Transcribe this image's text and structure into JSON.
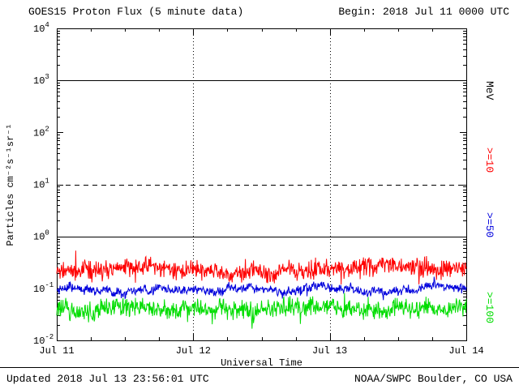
{
  "header": {
    "title": "GOES15 Proton Flux (5 minute data)",
    "begin_label": "Begin: 2018 Jul 11 0000 UTC"
  },
  "axes": {
    "ylabel": "Particles cm⁻²s⁻¹sr⁻¹",
    "xlabel": "Universal Time"
  },
  "legend": {
    "unit": "MeV",
    "items": [
      {
        "label": ">=10",
        "color": "#ff0000"
      },
      {
        "label": ">=50",
        "color": "#0000dd"
      },
      {
        "label": ">=100",
        "color": "#00dd00"
      }
    ]
  },
  "footer": {
    "updated": "Updated 2018 Jul 13 23:56:01 UTC",
    "source": "NOAA/SWPC Boulder, CO USA"
  },
  "chart_data": {
    "type": "line",
    "title": "GOES15 Proton Flux (5 minute data)",
    "xlabel": "Universal Time",
    "ylabel": "Particles cm^-2 s^-1 sr^-1",
    "x_ticks": [
      "Jul 11",
      "Jul 12",
      "Jul 13",
      "Jul 14"
    ],
    "y_tick_exponents": [
      -2,
      -1,
      0,
      1,
      2,
      3,
      4
    ],
    "ylim_log10": [
      -2,
      4
    ],
    "x_range": {
      "start": "2018 Jul 11 0000 UTC",
      "days": 3,
      "cadence_minutes": 5
    },
    "gridlines": {
      "solid_log10": [
        0,
        3
      ],
      "dashed_log10": [
        1
      ],
      "vertical_dotted_days": [
        1,
        2
      ],
      "vertical_dotted_labels": [
        "Jul 12",
        "Jul 13"
      ]
    },
    "series": [
      {
        "name": ">=10",
        "unit": "MeV",
        "color": "#ff0000",
        "mean_log10_flux": -0.62,
        "sigma_log10": 0.11,
        "spike_prob": 0.02,
        "spike_mag_log10": 0.24,
        "seed": 11,
        "approx_flux_range": [
          0.1,
          0.5
        ]
      },
      {
        "name": ">=50",
        "unit": "MeV",
        "color": "#0000dd",
        "mean_log10_flux": -1.02,
        "sigma_log10": 0.05,
        "spike_prob": 0.012,
        "spike_mag_log10": 0.18,
        "seed": 23,
        "approx_flux_range": [
          0.06,
          0.14
        ]
      },
      {
        "name": ">=100",
        "unit": "MeV",
        "color": "#00dd00",
        "mean_log10_flux": -1.4,
        "sigma_log10": 0.11,
        "spike_prob": 0.03,
        "spike_mag_log10": 0.22,
        "seed": 37,
        "approx_flux_range": [
          0.02,
          0.09
        ]
      }
    ]
  }
}
